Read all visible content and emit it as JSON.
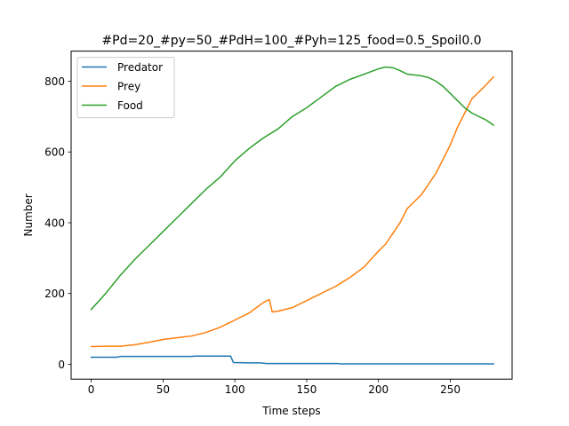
{
  "chart_data": {
    "type": "line",
    "title": "#Pd=20_#py=50_#PdH=100_#Pyh=125_food=0.5_Spoil0.0",
    "xlabel": "Time steps",
    "ylabel": "Number",
    "xlim": [
      -14,
      293
    ],
    "ylim": [
      -42,
      885
    ],
    "xticks": [
      0,
      50,
      100,
      150,
      200,
      250
    ],
    "yticks": [
      0,
      200,
      400,
      600,
      800
    ],
    "grid": false,
    "legend": "top-left",
    "series": [
      {
        "name": "Predator",
        "color": "#1f77b4",
        "points": [
          [
            0,
            20
          ],
          [
            18,
            20
          ],
          [
            20,
            22
          ],
          [
            30,
            22
          ],
          [
            50,
            22
          ],
          [
            70,
            22
          ],
          [
            72,
            23
          ],
          [
            85,
            23
          ],
          [
            97,
            23
          ],
          [
            99,
            5
          ],
          [
            110,
            4
          ],
          [
            118,
            4
          ],
          [
            122,
            2
          ],
          [
            140,
            2
          ],
          [
            160,
            2
          ],
          [
            172,
            2
          ],
          [
            174,
            1
          ],
          [
            200,
            1
          ],
          [
            240,
            1
          ],
          [
            280,
            1
          ]
        ]
      },
      {
        "name": "Prey",
        "color": "#ff7f0e",
        "points": [
          [
            0,
            50
          ],
          [
            10,
            51
          ],
          [
            20,
            51
          ],
          [
            30,
            55
          ],
          [
            40,
            62
          ],
          [
            50,
            70
          ],
          [
            60,
            75
          ],
          [
            70,
            80
          ],
          [
            80,
            90
          ],
          [
            90,
            105
          ],
          [
            100,
            125
          ],
          [
            110,
            145
          ],
          [
            115,
            160
          ],
          [
            120,
            175
          ],
          [
            124,
            183
          ],
          [
            126,
            148
          ],
          [
            130,
            150
          ],
          [
            140,
            160
          ],
          [
            150,
            180
          ],
          [
            160,
            200
          ],
          [
            170,
            220
          ],
          [
            180,
            245
          ],
          [
            190,
            275
          ],
          [
            200,
            320
          ],
          [
            205,
            340
          ],
          [
            210,
            370
          ],
          [
            215,
            400
          ],
          [
            220,
            440
          ],
          [
            230,
            480
          ],
          [
            235,
            510
          ],
          [
            240,
            540
          ],
          [
            245,
            580
          ],
          [
            250,
            620
          ],
          [
            255,
            670
          ],
          [
            260,
            710
          ],
          [
            265,
            750
          ],
          [
            270,
            770
          ],
          [
            275,
            790
          ],
          [
            280,
            812
          ]
        ]
      },
      {
        "name": "Food",
        "color": "#2ca02c",
        "points": [
          [
            0,
            155
          ],
          [
            10,
            200
          ],
          [
            20,
            250
          ],
          [
            30,
            295
          ],
          [
            40,
            335
          ],
          [
            50,
            375
          ],
          [
            60,
            415
          ],
          [
            70,
            455
          ],
          [
            80,
            495
          ],
          [
            90,
            530
          ],
          [
            100,
            575
          ],
          [
            110,
            610
          ],
          [
            120,
            640
          ],
          [
            130,
            665
          ],
          [
            140,
            700
          ],
          [
            150,
            725
          ],
          [
            160,
            755
          ],
          [
            170,
            785
          ],
          [
            180,
            805
          ],
          [
            190,
            820
          ],
          [
            200,
            835
          ],
          [
            205,
            840
          ],
          [
            210,
            838
          ],
          [
            215,
            830
          ],
          [
            220,
            820
          ],
          [
            230,
            815
          ],
          [
            235,
            810
          ],
          [
            240,
            800
          ],
          [
            245,
            785
          ],
          [
            250,
            765
          ],
          [
            255,
            745
          ],
          [
            260,
            725
          ],
          [
            265,
            710
          ],
          [
            270,
            700
          ],
          [
            275,
            690
          ],
          [
            280,
            676
          ]
        ]
      }
    ]
  }
}
